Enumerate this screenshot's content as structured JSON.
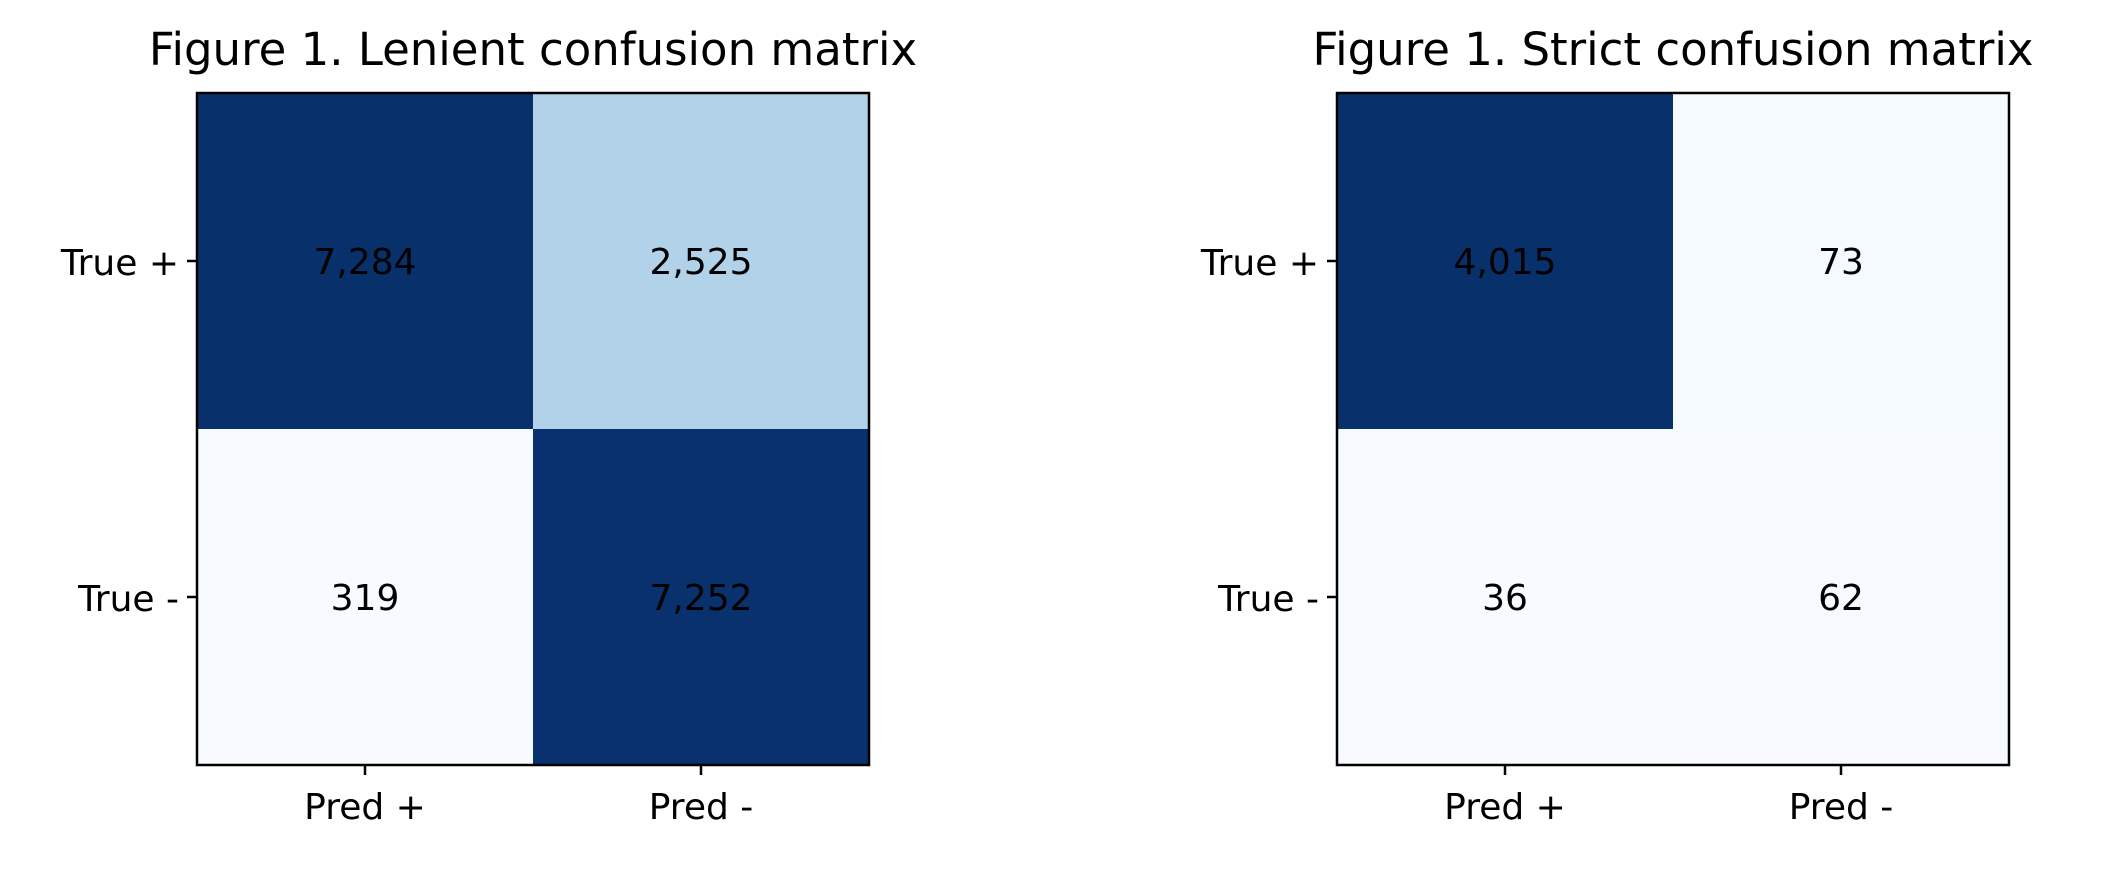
{
  "chart_data": [
    {
      "type": "heatmap",
      "title": "Figure 1. Lenient confusion matrix",
      "xlabel": "",
      "ylabel": "",
      "x_categories": [
        "Pred +",
        "Pred -"
      ],
      "y_categories": [
        "True +",
        "True -"
      ],
      "values": [
        [
          7284,
          2525
        ],
        [
          319,
          7252
        ]
      ],
      "cell_labels": [
        [
          "7,284",
          "2,525"
        ],
        [
          "319",
          "7,252"
        ]
      ],
      "colormap": "Blues",
      "color_range": [
        319,
        7284
      ],
      "grid": false
    },
    {
      "type": "heatmap",
      "title": "Figure 1. Strict confusion matrix",
      "xlabel": "",
      "ylabel": "",
      "x_categories": [
        "Pred +",
        "Pred -"
      ],
      "y_categories": [
        "True +",
        "True -"
      ],
      "values": [
        [
          4015,
          73
        ],
        [
          36,
          62
        ]
      ],
      "cell_labels": [
        [
          "4,015",
          "73"
        ],
        [
          "36",
          "62"
        ]
      ],
      "colormap": "Blues",
      "color_range": [
        36,
        4015
      ],
      "grid": false
    }
  ]
}
